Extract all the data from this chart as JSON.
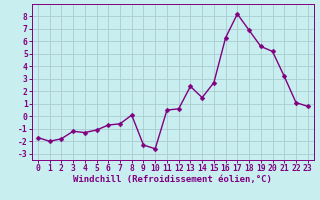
{
  "x": [
    0,
    1,
    2,
    3,
    4,
    5,
    6,
    7,
    8,
    9,
    10,
    11,
    12,
    13,
    14,
    15,
    16,
    17,
    18,
    19,
    20,
    21,
    22,
    23
  ],
  "y": [
    -1.7,
    -2.0,
    -1.8,
    -1.2,
    -1.3,
    -1.1,
    -0.7,
    -0.6,
    0.1,
    -2.3,
    -2.6,
    0.5,
    0.6,
    2.4,
    1.5,
    2.7,
    6.3,
    8.2,
    6.9,
    5.6,
    5.2,
    3.2,
    1.1,
    0.8
  ],
  "line_color": "#800080",
  "marker": "D",
  "marker_size": 2.5,
  "linewidth": 1.0,
  "bg_color": "#c8eef0",
  "grid_color": "#a8ccd0",
  "xlabel": "Windchill (Refroidissement éolien,°C)",
  "ylim": [
    -3.5,
    9.0
  ],
  "xlim": [
    -0.5,
    23.5
  ],
  "yticks": [
    -3,
    -2,
    -1,
    0,
    1,
    2,
    3,
    4,
    5,
    6,
    7,
    8
  ],
  "xticks": [
    0,
    1,
    2,
    3,
    4,
    5,
    6,
    7,
    8,
    9,
    10,
    11,
    12,
    13,
    14,
    15,
    16,
    17,
    18,
    19,
    20,
    21,
    22,
    23
  ],
  "xlabel_fontsize": 6.5,
  "tick_fontsize": 5.8
}
